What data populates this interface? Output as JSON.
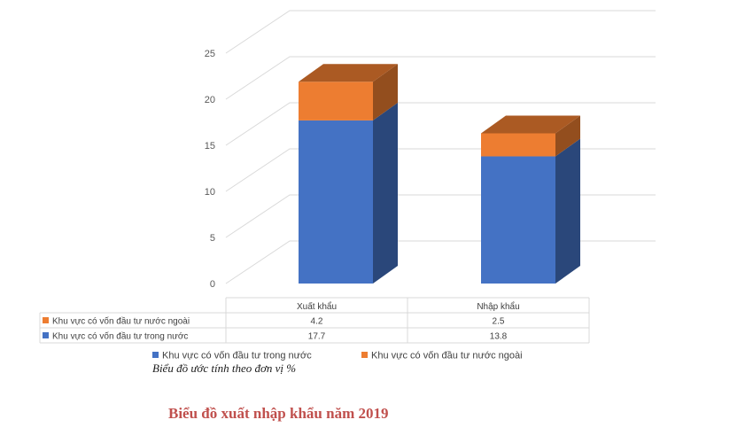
{
  "chart_data": {
    "type": "bar",
    "stacked": true,
    "style": "3d",
    "categories": [
      "Xuất khẩu",
      "Nhập khẩu"
    ],
    "series": [
      {
        "name": "Khu vực có vốn đầu tư trong nước",
        "values": [
          17.7,
          13.8
        ],
        "color": "#4472c4"
      },
      {
        "name": "Khu vực có vốn đầu tư nước ngoài",
        "values": [
          4.2,
          2.5
        ],
        "color": "#ed7d31"
      }
    ],
    "ylim": [
      0,
      25
    ],
    "yticks": [
      0,
      5,
      10,
      15,
      20,
      25
    ],
    "table_rows": [
      {
        "label": "Khu vực có vốn đầu tư nước ngoài",
        "values": [
          "4.2",
          "2.5"
        ],
        "color": "#ed7d31"
      },
      {
        "label": "Khu vực có vốn đầu tư trong nước",
        "values": [
          "17.7",
          "13.8"
        ],
        "color": "#4472c4"
      }
    ],
    "legend": [
      {
        "label": "Khu vực có vốn đầu tư trong nước",
        "color": "#4472c4"
      },
      {
        "label": "Khu vực có vốn đầu tư nước ngoài",
        "color": "#ed7d31"
      }
    ],
    "legend_position": "bottom",
    "grid": true
  },
  "note": "Biểu đồ ước tính theo đơn vị %",
  "caption": "Biểu đồ xuất nhập khẩu năm 2019"
}
